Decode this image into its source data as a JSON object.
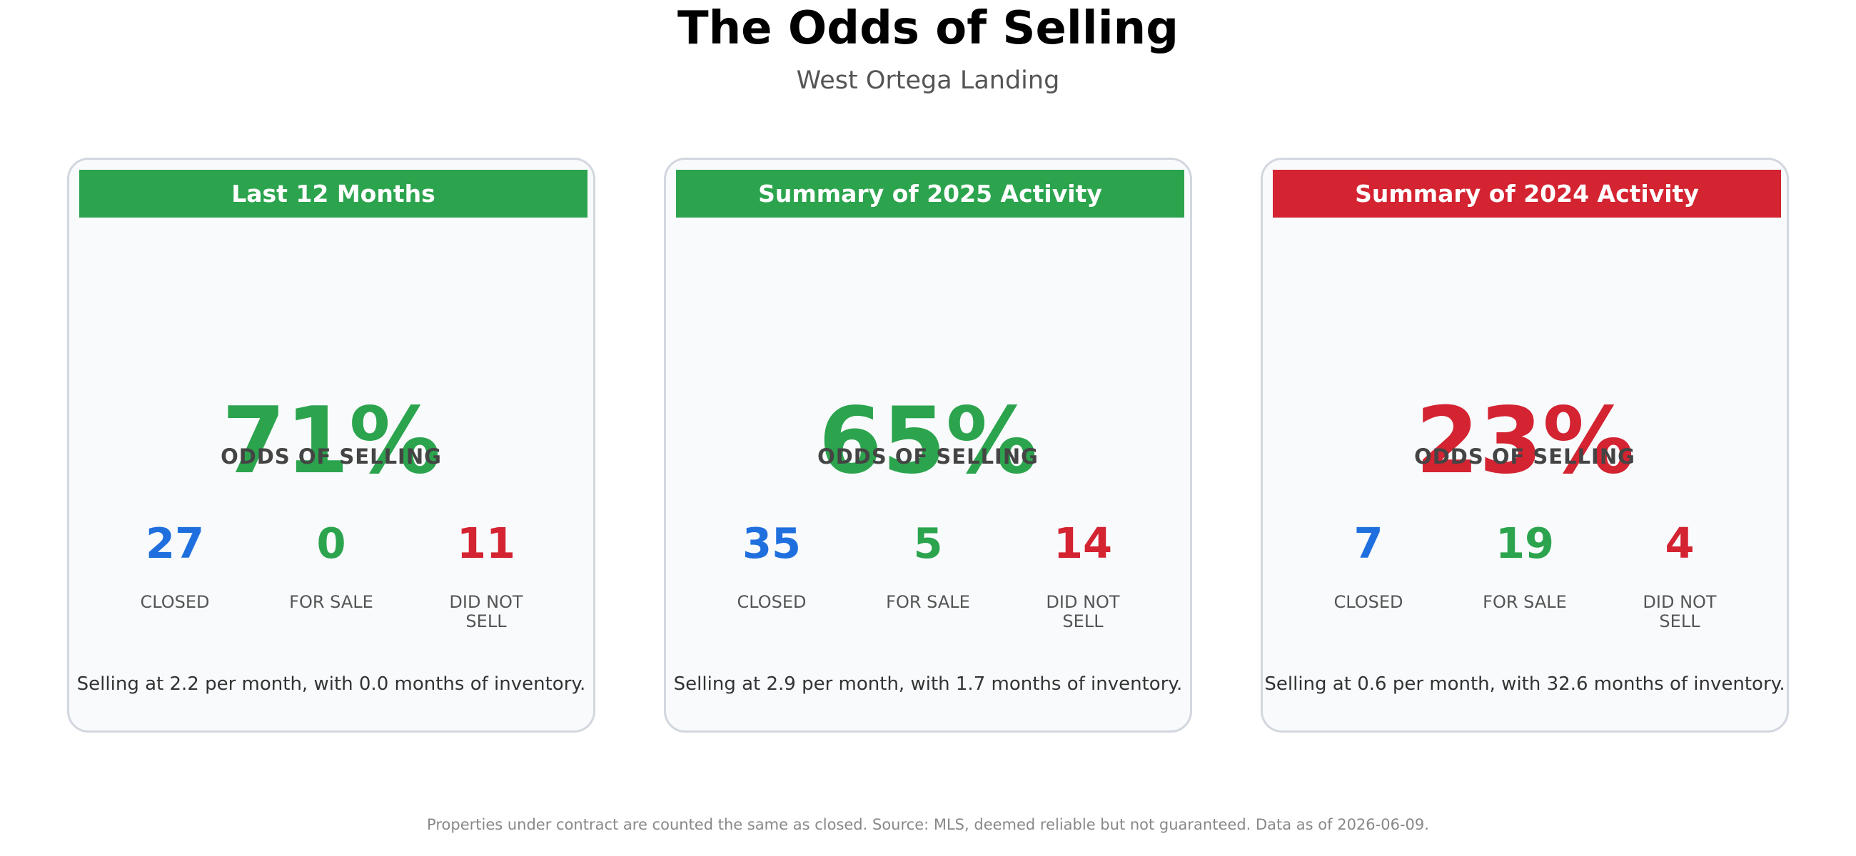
{
  "title": "The Odds of Selling",
  "subtitle": "West Ortega Landing",
  "colors": {
    "good": "#2ca44e",
    "bad": "#d42331",
    "closed": "#1f6fde",
    "card_border": "#d2d7df",
    "card_bg": "#f8fafc"
  },
  "cards": [
    {
      "header": "Last 12 Months",
      "header_color": "#2ca44e",
      "odds_value": "71%",
      "odds_color": "#2ca44e",
      "odds_label": "ODDS OF SELLING",
      "stats": [
        {
          "value": "27",
          "label": "CLOSED",
          "color": "#1f6fde"
        },
        {
          "value": "0",
          "label": "FOR SALE",
          "color": "#2ca44e"
        },
        {
          "value": "11",
          "label": "DID NOT\nSELL",
          "color": "#d42331"
        }
      ],
      "summary": "Selling at 2.2 per month, with 0.0 months of inventory."
    },
    {
      "header": "Summary of 2025 Activity",
      "header_color": "#2ca44e",
      "odds_value": "65%",
      "odds_color": "#2ca44e",
      "odds_label": "ODDS OF SELLING",
      "stats": [
        {
          "value": "35",
          "label": "CLOSED",
          "color": "#1f6fde"
        },
        {
          "value": "5",
          "label": "FOR SALE",
          "color": "#2ca44e"
        },
        {
          "value": "14",
          "label": "DID NOT\nSELL",
          "color": "#d42331"
        }
      ],
      "summary": "Selling at 2.9 per month, with 1.7 months of inventory."
    },
    {
      "header": "Summary of 2024 Activity",
      "header_color": "#d42331",
      "odds_value": "23%",
      "odds_color": "#d42331",
      "odds_label": "ODDS OF SELLING",
      "stats": [
        {
          "value": "7",
          "label": "CLOSED",
          "color": "#1f6fde"
        },
        {
          "value": "19",
          "label": "FOR SALE",
          "color": "#2ca44e"
        },
        {
          "value": "4",
          "label": "DID NOT\nSELL",
          "color": "#d42331"
        }
      ],
      "summary": "Selling at 0.6 per month, with 32.6 months of inventory."
    }
  ],
  "footnote": "Properties under contract are counted the same as closed. Source: MLS, deemed reliable but not guaranteed. Data as of 2026-06-09.",
  "chart_data": {
    "type": "table",
    "title": "The Odds of Selling",
    "subtitle": "West Ortega Landing",
    "columns": [
      "CLOSED",
      "FOR SALE",
      "DID NOT SELL",
      "ODDS OF SELLING"
    ],
    "rows": [
      {
        "period": "Last 12 Months",
        "closed": 27,
        "for_sale": 0,
        "did_not_sell": 11,
        "odds_pct": 71,
        "per_month": 2.2,
        "months_inventory": 0.0
      },
      {
        "period": "Summary of 2025 Activity",
        "closed": 35,
        "for_sale": 5,
        "did_not_sell": 14,
        "odds_pct": 65,
        "per_month": 2.9,
        "months_inventory": 1.7
      },
      {
        "period": "Summary of 2024 Activity",
        "closed": 7,
        "for_sale": 19,
        "did_not_sell": 4,
        "odds_pct": 23,
        "per_month": 0.6,
        "months_inventory": 32.6
      }
    ]
  }
}
